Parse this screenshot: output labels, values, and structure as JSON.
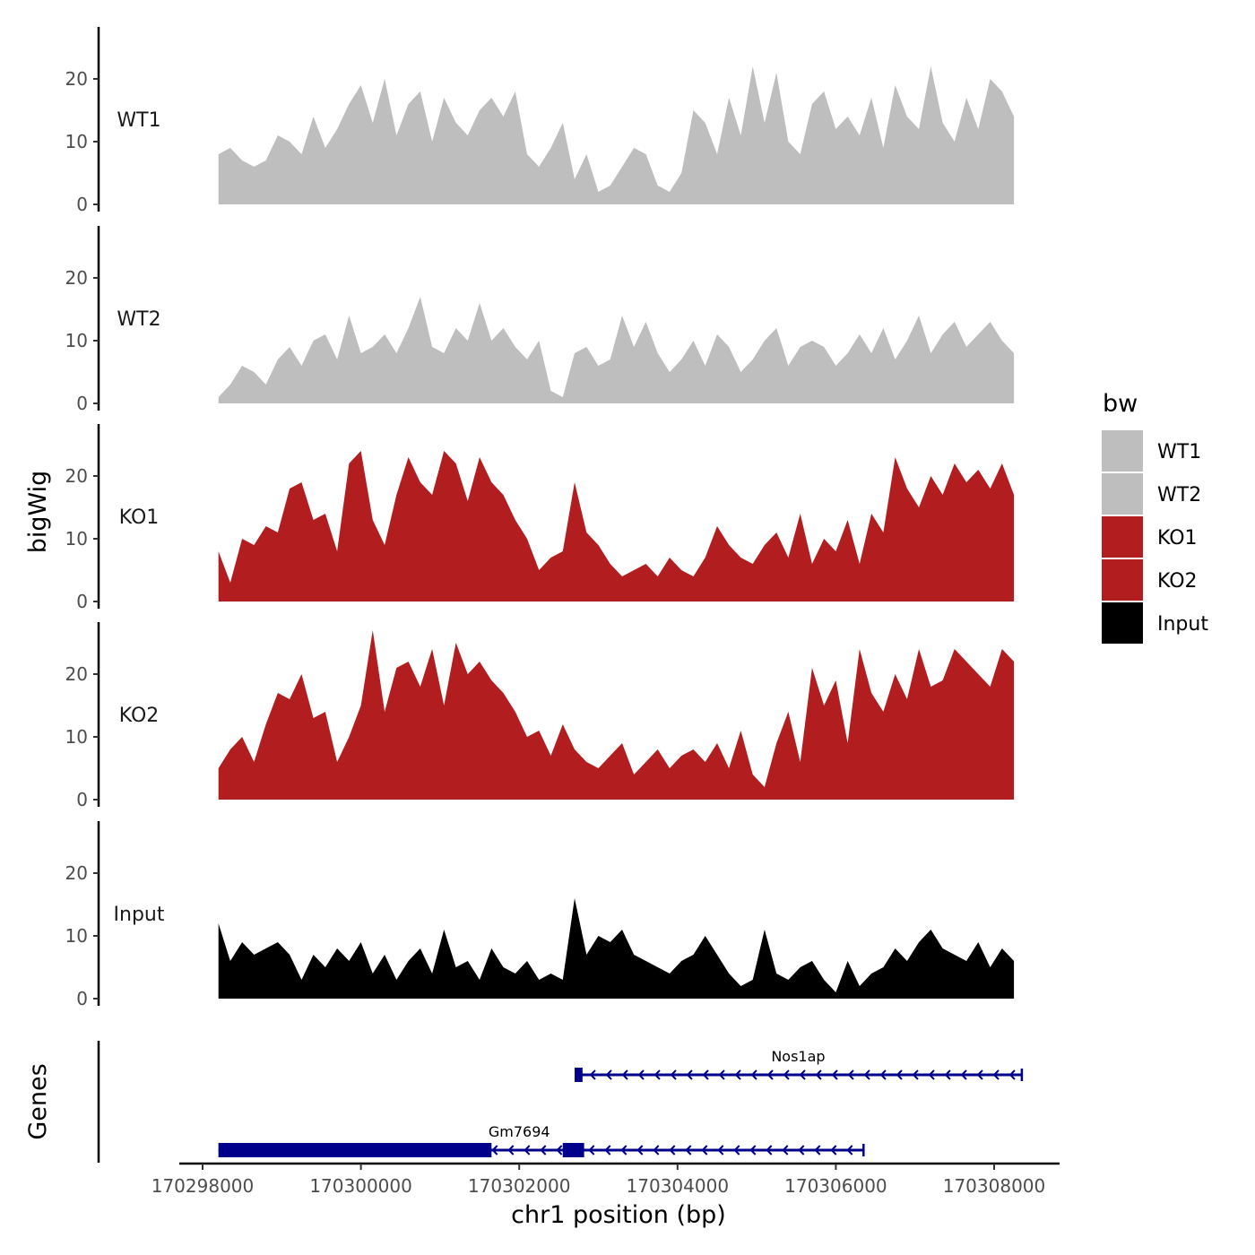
{
  "chart_data": {
    "type": "area",
    "title": "",
    "xlabel": "chr1 position (bp)",
    "ylabel": "bigWig",
    "genes_label": "Genes",
    "xlim": [
      170297700,
      170308850
    ],
    "ylim": [
      0,
      28
    ],
    "yticks": [
      0,
      10,
      20
    ],
    "xticks": [
      170298000,
      170300000,
      170302000,
      170304000,
      170306000,
      170308000
    ],
    "xtick_labels": [
      "170298000",
      "170300000",
      "170302000",
      "170304000",
      "170306000",
      "170308000"
    ],
    "legend": {
      "title": "bw",
      "position": "right",
      "entries": [
        {
          "name": "WT1",
          "color": "#bebebe"
        },
        {
          "name": "WT2",
          "color": "#bebebe"
        },
        {
          "name": "KO1",
          "color": "#b21e20"
        },
        {
          "name": "KO2",
          "color": "#b21e20"
        },
        {
          "name": "Input",
          "color": "#000000"
        }
      ]
    },
    "tracks": [
      {
        "name": "WT1",
        "color": "#bebebe",
        "x": [
          170298200,
          170298350,
          170298500,
          170298650,
          170298800,
          170298950,
          170299100,
          170299250,
          170299400,
          170299550,
          170299700,
          170299850,
          170300000,
          170300150,
          170300300,
          170300450,
          170300600,
          170300750,
          170300900,
          170301050,
          170301200,
          170301350,
          170301500,
          170301650,
          170301800,
          170301950,
          170302100,
          170302250,
          170302400,
          170302550,
          170302700,
          170302850,
          170303000,
          170303150,
          170303300,
          170303450,
          170303600,
          170303750,
          170303900,
          170304050,
          170304200,
          170304350,
          170304500,
          170304650,
          170304800,
          170304950,
          170305100,
          170305250,
          170305400,
          170305550,
          170305700,
          170305850,
          170306000,
          170306150,
          170306300,
          170306450,
          170306600,
          170306750,
          170306900,
          170307050,
          170307200,
          170307350,
          170307500,
          170307650,
          170307800,
          170307950,
          170308100,
          170308250
        ],
        "y": [
          8,
          9,
          7,
          6,
          7,
          11,
          10,
          8,
          14,
          9,
          12,
          16,
          19,
          13,
          20,
          11,
          16,
          18,
          10,
          17,
          13,
          11,
          15,
          17,
          14,
          18,
          8,
          6,
          9,
          13,
          4,
          8,
          2,
          3,
          6,
          9,
          8,
          3,
          2,
          5,
          15,
          13,
          8,
          17,
          11,
          22,
          13,
          21,
          10,
          8,
          16,
          18,
          12,
          14,
          11,
          17,
          9,
          19,
          14,
          12,
          22,
          13,
          10,
          17,
          12,
          20,
          18,
          14
        ]
      },
      {
        "name": "WT2",
        "color": "#bebebe",
        "x": [
          170298200,
          170298350,
          170298500,
          170298650,
          170298800,
          170298950,
          170299100,
          170299250,
          170299400,
          170299550,
          170299700,
          170299850,
          170300000,
          170300150,
          170300300,
          170300450,
          170300600,
          170300750,
          170300900,
          170301050,
          170301200,
          170301350,
          170301500,
          170301650,
          170301800,
          170301950,
          170302100,
          170302250,
          170302400,
          170302550,
          170302700,
          170302850,
          170303000,
          170303150,
          170303300,
          170303450,
          170303600,
          170303750,
          170303900,
          170304050,
          170304200,
          170304350,
          170304500,
          170304650,
          170304800,
          170304950,
          170305100,
          170305250,
          170305400,
          170305550,
          170305700,
          170305850,
          170306000,
          170306150,
          170306300,
          170306450,
          170306600,
          170306750,
          170306900,
          170307050,
          170307200,
          170307350,
          170307500,
          170307650,
          170307800,
          170307950,
          170308100,
          170308250
        ],
        "y": [
          1,
          3,
          6,
          5,
          3,
          7,
          9,
          6,
          10,
          11,
          7,
          14,
          8,
          9,
          11,
          8,
          12,
          17,
          9,
          8,
          12,
          10,
          16,
          10,
          12,
          9,
          7,
          10,
          2,
          1,
          8,
          9,
          6,
          7,
          14,
          9,
          13,
          8,
          5,
          7,
          10,
          6,
          11,
          9,
          5,
          7,
          10,
          12,
          6,
          9,
          10,
          9,
          6,
          8,
          11,
          8,
          12,
          7,
          10,
          14,
          8,
          11,
          13,
          9,
          11,
          13,
          10,
          8
        ]
      },
      {
        "name": "KO1",
        "color": "#b21e20",
        "x": [
          170298200,
          170298350,
          170298500,
          170298650,
          170298800,
          170298950,
          170299100,
          170299250,
          170299400,
          170299550,
          170299700,
          170299850,
          170300000,
          170300150,
          170300300,
          170300450,
          170300600,
          170300750,
          170300900,
          170301050,
          170301200,
          170301350,
          170301500,
          170301650,
          170301800,
          170301950,
          170302100,
          170302250,
          170302400,
          170302550,
          170302700,
          170302850,
          170303000,
          170303150,
          170303300,
          170303450,
          170303600,
          170303750,
          170303900,
          170304050,
          170304200,
          170304350,
          170304500,
          170304650,
          170304800,
          170304950,
          170305100,
          170305250,
          170305400,
          170305550,
          170305700,
          170305850,
          170306000,
          170306150,
          170306300,
          170306450,
          170306600,
          170306750,
          170306900,
          170307050,
          170307200,
          170307350,
          170307500,
          170307650,
          170307800,
          170307950,
          170308100,
          170308250
        ],
        "y": [
          8,
          3,
          10,
          9,
          12,
          11,
          18,
          19,
          13,
          14,
          8,
          22,
          24,
          13,
          9,
          17,
          23,
          19,
          17,
          24,
          22,
          16,
          23,
          19,
          17,
          13,
          10,
          5,
          7,
          8,
          19,
          11,
          9,
          6,
          4,
          5,
          6,
          4,
          7,
          5,
          4,
          7,
          12,
          9,
          7,
          6,
          9,
          11,
          7,
          14,
          6,
          10,
          8,
          13,
          6,
          14,
          11,
          23,
          18,
          15,
          20,
          17,
          22,
          19,
          21,
          18,
          22,
          17
        ]
      },
      {
        "name": "KO2",
        "color": "#b21e20",
        "x": [
          170298200,
          170298350,
          170298500,
          170298650,
          170298800,
          170298950,
          170299100,
          170299250,
          170299400,
          170299550,
          170299700,
          170299850,
          170300000,
          170300150,
          170300300,
          170300450,
          170300600,
          170300750,
          170300900,
          170301050,
          170301200,
          170301350,
          170301500,
          170301650,
          170301800,
          170301950,
          170302100,
          170302250,
          170302400,
          170302550,
          170302700,
          170302850,
          170303000,
          170303150,
          170303300,
          170303450,
          170303600,
          170303750,
          170303900,
          170304050,
          170304200,
          170304350,
          170304500,
          170304650,
          170304800,
          170304950,
          170305100,
          170305250,
          170305400,
          170305550,
          170305700,
          170305850,
          170306000,
          170306150,
          170306300,
          170306450,
          170306600,
          170306750,
          170306900,
          170307050,
          170307200,
          170307350,
          170307500,
          170307650,
          170307800,
          170307950,
          170308100,
          170308250
        ],
        "y": [
          5,
          8,
          10,
          6,
          12,
          17,
          16,
          20,
          13,
          14,
          6,
          10,
          15,
          27,
          14,
          21,
          22,
          18,
          24,
          15,
          25,
          20,
          22,
          19,
          17,
          14,
          10,
          11,
          7,
          12,
          8,
          6,
          5,
          7,
          9,
          4,
          6,
          8,
          5,
          7,
          8,
          6,
          9,
          5,
          11,
          4,
          2,
          9,
          14,
          6,
          21,
          15,
          19,
          9,
          24,
          17,
          14,
          20,
          16,
          24,
          18,
          19,
          24,
          22,
          20,
          18,
          24,
          22
        ]
      },
      {
        "name": "Input",
        "color": "#000000",
        "x": [
          170298200,
          170298350,
          170298500,
          170298650,
          170298800,
          170298950,
          170299100,
          170299250,
          170299400,
          170299550,
          170299700,
          170299850,
          170300000,
          170300150,
          170300300,
          170300450,
          170300600,
          170300750,
          170300900,
          170301050,
          170301200,
          170301350,
          170301500,
          170301650,
          170301800,
          170301950,
          170302100,
          170302250,
          170302400,
          170302550,
          170302700,
          170302850,
          170303000,
          170303150,
          170303300,
          170303450,
          170303600,
          170303750,
          170303900,
          170304050,
          170304200,
          170304350,
          170304500,
          170304650,
          170304800,
          170304950,
          170305100,
          170305250,
          170305400,
          170305550,
          170305700,
          170305850,
          170306000,
          170306150,
          170306300,
          170306450,
          170306600,
          170306750,
          170306900,
          170307050,
          170307200,
          170307350,
          170307500,
          170307650,
          170307800,
          170307950,
          170308100,
          170308250
        ],
        "y": [
          12,
          6,
          9,
          7,
          8,
          9,
          7,
          3,
          7,
          5,
          8,
          6,
          9,
          4,
          7,
          3,
          6,
          8,
          4,
          11,
          5,
          6,
          3,
          8,
          5,
          4,
          6,
          3,
          4,
          3,
          16,
          7,
          10,
          9,
          11,
          7,
          6,
          5,
          4,
          6,
          7,
          10,
          7,
          4,
          2,
          3,
          11,
          4,
          3,
          5,
          6,
          3,
          1,
          6,
          2,
          4,
          5,
          8,
          6,
          9,
          11,
          8,
          7,
          6,
          9,
          5,
          8,
          6
        ]
      }
    ],
    "genes": [
      {
        "name": "Nos1ap",
        "strand": "-",
        "start": 170302700,
        "end": 170308350,
        "exons": [
          [
            170302700,
            170302800
          ]
        ]
      },
      {
        "name": "Gm7694",
        "strand": "-",
        "start": 170298200,
        "end": 170306350,
        "exons": [
          [
            170298200,
            170301650
          ],
          [
            170302550,
            170302820
          ]
        ]
      }
    ]
  }
}
